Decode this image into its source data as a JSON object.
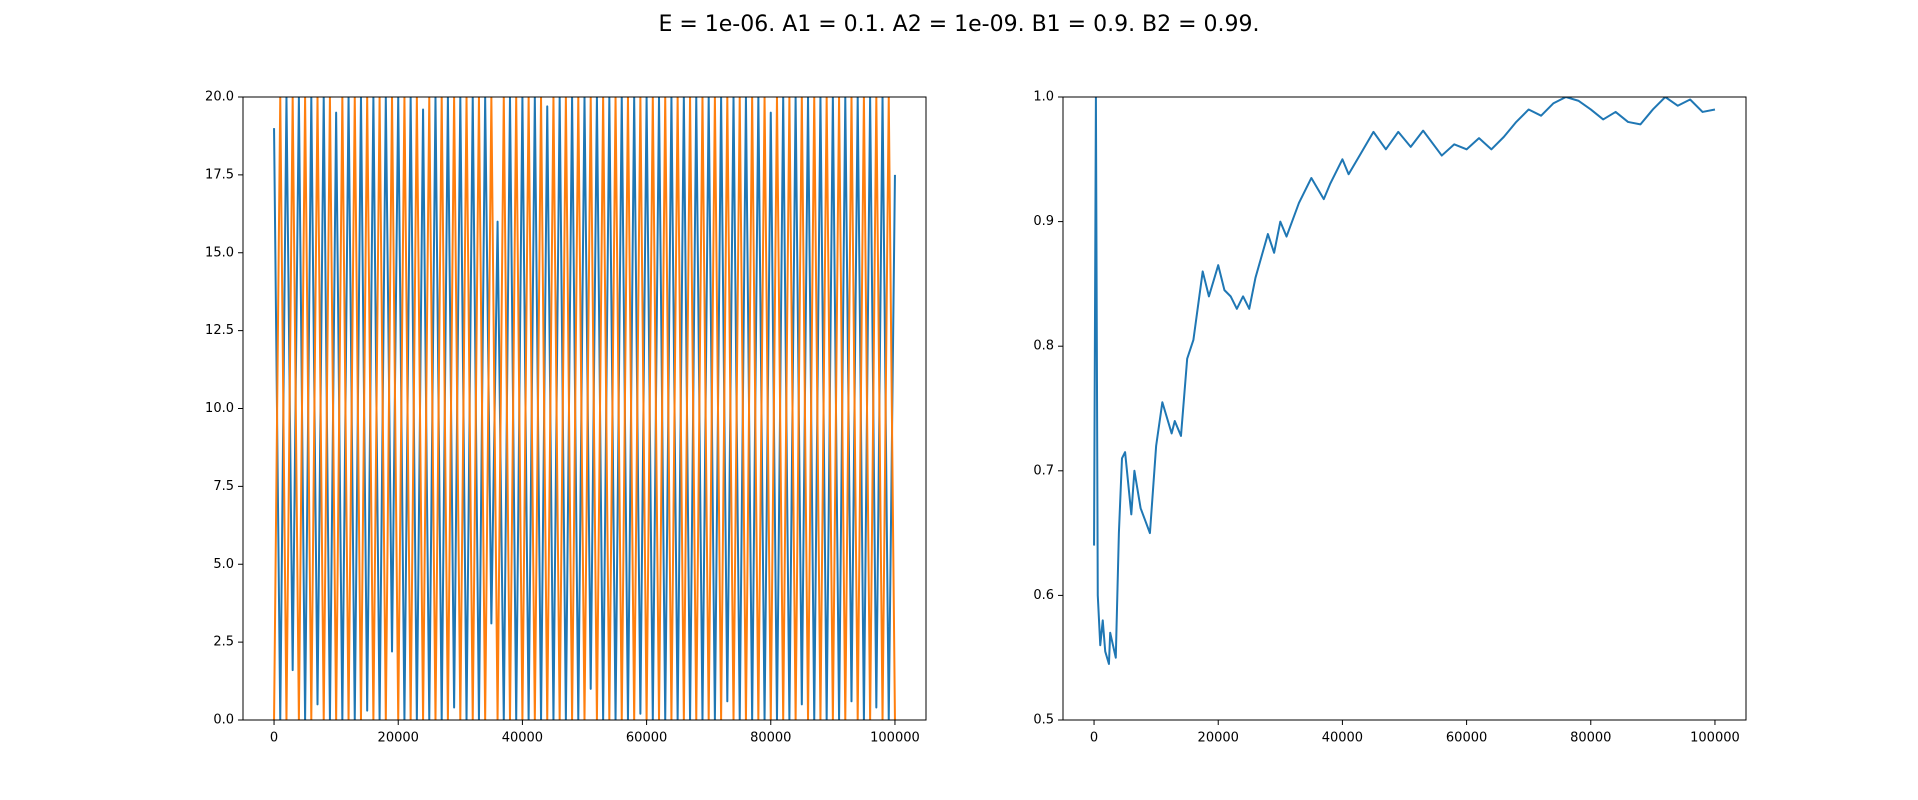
{
  "title": "E = 1e-06. A1 = 0.1. A2 = 1e-09. B1 = 0.9. B2 = 0.99.",
  "chart_data": [
    {
      "type": "line",
      "x": [
        0,
        1000,
        2000,
        3000,
        4000,
        5000,
        6000,
        7000,
        8000,
        9000,
        10000,
        11000,
        12000,
        13000,
        14000,
        15000,
        16000,
        17000,
        18000,
        19000,
        20000,
        21000,
        22000,
        23000,
        24000,
        25000,
        26000,
        27000,
        28000,
        29000,
        30000,
        31000,
        32000,
        33000,
        34000,
        35000,
        36000,
        37000,
        38000,
        39000,
        40000,
        41000,
        42000,
        43000,
        44000,
        45000,
        46000,
        47000,
        48000,
        49000,
        50000,
        51000,
        52000,
        53000,
        54000,
        55000,
        56000,
        57000,
        58000,
        59000,
        60000,
        61000,
        62000,
        63000,
        64000,
        65000,
        66000,
        67000,
        68000,
        69000,
        70000,
        71000,
        72000,
        73000,
        74000,
        75000,
        76000,
        77000,
        78000,
        79000,
        80000,
        81000,
        82000,
        83000,
        84000,
        85000,
        86000,
        87000,
        88000,
        89000,
        90000,
        91000,
        92000,
        93000,
        94000,
        95000,
        96000,
        97000,
        98000,
        99000,
        100000
      ],
      "series": [
        {
          "color": "#1f77b4",
          "values": [
            19,
            0,
            20,
            1.6,
            20,
            0,
            20,
            0.5,
            20,
            0,
            19.5,
            0,
            20,
            0,
            20,
            0.3,
            20,
            0,
            20,
            2.2,
            20,
            0,
            20,
            0,
            19.6,
            0,
            20,
            0,
            20,
            0.4,
            20,
            0,
            20,
            0,
            20,
            3.1,
            16,
            0,
            20,
            0,
            20,
            0,
            20,
            0,
            19.7,
            0,
            20,
            0,
            20,
            0,
            20,
            1,
            20,
            0,
            20,
            0,
            20,
            0,
            20,
            0.2,
            20,
            0,
            20,
            0,
            20,
            0,
            20,
            0,
            20,
            0,
            20,
            0,
            20,
            0.6,
            20,
            0,
            20,
            0,
            20,
            0,
            19.5,
            0,
            20,
            0,
            20,
            0.5,
            20,
            0,
            20,
            0,
            20,
            0,
            20,
            0.6,
            20,
            0,
            20,
            0.4,
            20,
            0,
            17.5
          ]
        },
        {
          "color": "#ff7f0e",
          "values": [
            0,
            20,
            0,
            20,
            0,
            20,
            0,
            20,
            0,
            20,
            0,
            20,
            0,
            20,
            0,
            20,
            0,
            20,
            0,
            20,
            0,
            20,
            0,
            20,
            0,
            20,
            0,
            20,
            0,
            20,
            0,
            20,
            0,
            20,
            0,
            20,
            0,
            20,
            0,
            20,
            0,
            20,
            0,
            20,
            0,
            20,
            0,
            20,
            0,
            20,
            0,
            20,
            0,
            20,
            0,
            20,
            0,
            20,
            0,
            20,
            0,
            20,
            0,
            20,
            0,
            20,
            0,
            20,
            0,
            20,
            0,
            20,
            0,
            20,
            0,
            20,
            0,
            20,
            0,
            20,
            0,
            20,
            0,
            20,
            0,
            20,
            0,
            20,
            0,
            20,
            0,
            20,
            0,
            20,
            0,
            20,
            0,
            20,
            0,
            20,
            0
          ]
        }
      ],
      "xlim": [
        -5000,
        105000
      ],
      "xticks": [
        0,
        20000,
        40000,
        60000,
        80000,
        100000
      ],
      "ylim": [
        0,
        20
      ],
      "yticks": [
        {
          "value": 0,
          "label": "0.0"
        },
        2.5,
        {
          "value": 5,
          "label": "5.0"
        },
        7.5,
        {
          "value": 10,
          "label": "10.0"
        },
        12.5,
        {
          "value": 15,
          "label": "15.0"
        },
        17.5,
        {
          "value": 20,
          "label": "20.0"
        }
      ]
    },
    {
      "type": "line",
      "x": [
        0,
        300,
        600,
        1000,
        1400,
        1800,
        2400,
        2600,
        3500,
        4000,
        4500,
        5000,
        6000,
        6500,
        7500,
        9000,
        10000,
        11000,
        12500,
        13000,
        14000,
        15000,
        16000,
        17500,
        18500,
        20000,
        21000,
        22000,
        23000,
        24000,
        25000,
        26000,
        28000,
        29000,
        30000,
        31000,
        33000,
        35000,
        37000,
        38000,
        40000,
        41000,
        43000,
        45000,
        47000,
        49000,
        51000,
        53000,
        56000,
        58000,
        60000,
        62000,
        64000,
        66000,
        68000,
        70000,
        72000,
        74000,
        76000,
        78000,
        80000,
        82000,
        84000,
        86000,
        88000,
        90000,
        92000,
        94000,
        96000,
        98000,
        100000
      ],
      "series": [
        {
          "color": "#1f77b4",
          "values": [
            0.64,
            1.0,
            0.6,
            0.56,
            0.58,
            0.555,
            0.545,
            0.57,
            0.55,
            0.65,
            0.71,
            0.715,
            0.665,
            0.7,
            0.67,
            0.65,
            0.72,
            0.755,
            0.73,
            0.74,
            0.728,
            0.79,
            0.805,
            0.86,
            0.84,
            0.865,
            0.845,
            0.84,
            0.83,
            0.84,
            0.83,
            0.855,
            0.89,
            0.875,
            0.9,
            0.888,
            0.915,
            0.935,
            0.918,
            0.93,
            0.95,
            0.938,
            0.955,
            0.972,
            0.958,
            0.972,
            0.96,
            0.973,
            0.953,
            0.962,
            0.958,
            0.967,
            0.958,
            0.968,
            0.98,
            0.99,
            0.985,
            0.995,
            1.0,
            0.997,
            0.99,
            0.982,
            0.988,
            0.98,
            0.978,
            0.99,
            1.0,
            0.993,
            0.998,
            0.988,
            0.99
          ]
        }
      ],
      "xlim": [
        -5000,
        105000
      ],
      "xticks": [
        0,
        20000,
        40000,
        60000,
        80000,
        100000
      ],
      "ylim": [
        0.5,
        1.0
      ],
      "yticks": [
        0.5,
        0.6,
        0.7,
        0.8,
        0.9,
        {
          "value": 1,
          "label": "1.0"
        }
      ]
    }
  ]
}
